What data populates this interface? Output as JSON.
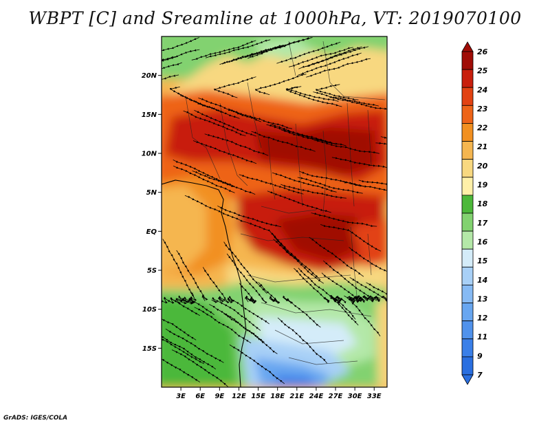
{
  "title": "WBPT [C] and Sreamline at 1000hPa, VT: 2019070100",
  "credit": "GrADS: IGES/COLA",
  "map": {
    "lon_range": [
      0,
      35
    ],
    "lat_range": [
      -20,
      25
    ],
    "lat_labels": [
      {
        "lat": 20,
        "label": "20N"
      },
      {
        "lat": 15,
        "label": "15N"
      },
      {
        "lat": 10,
        "label": "10N"
      },
      {
        "lat": 5,
        "label": "5N"
      },
      {
        "lat": 0,
        "label": "EQ"
      },
      {
        "lat": -5,
        "label": "5S"
      },
      {
        "lat": -10,
        "label": "10S"
      },
      {
        "lat": -15,
        "label": "15S"
      }
    ],
    "lon_labels": [
      {
        "lon": 3,
        "label": "3E"
      },
      {
        "lon": 6,
        "label": "6E"
      },
      {
        "lon": 9,
        "label": "9E"
      },
      {
        "lon": 12,
        "label": "12E"
      },
      {
        "lon": 15,
        "label": "15E"
      },
      {
        "lon": 18,
        "label": "18E"
      },
      {
        "lon": 21,
        "label": "21E"
      },
      {
        "lon": 24,
        "label": "24E"
      },
      {
        "lon": 27,
        "label": "27E"
      },
      {
        "lon": 30,
        "label": "30E"
      },
      {
        "lon": 33,
        "label": "33E"
      }
    ]
  },
  "colorbar": {
    "levels": [
      "7",
      "9",
      "11",
      "12",
      "13",
      "14",
      "15",
      "16",
      "17",
      "18",
      "19",
      "20",
      "21",
      "22",
      "23",
      "24",
      "25",
      "26"
    ],
    "colors": [
      "#2a6fe0",
      "#3a7fe8",
      "#5092ec",
      "#68a6f0",
      "#86baf4",
      "#a8d0f7",
      "#d4ecf9",
      "#b4e8a8",
      "#82d270",
      "#4cb83a",
      "#fff0a8",
      "#f8d880",
      "#f5b650",
      "#f29020",
      "#ee6418",
      "#e24212",
      "#c81e0c",
      "#a00c06"
    ]
  },
  "chart_data": {
    "type": "heatmap",
    "title": "WBPT [C] and Sreamline at 1000hPa, VT: 2019070100",
    "variable": "WBPT [C]",
    "overlay": "Streamline",
    "level": "1000hPa",
    "valid_time": "2019070100",
    "xlim": [
      0,
      35
    ],
    "ylim": [
      -20,
      25
    ],
    "regions": [
      {
        "area": "northern band 20N-25N",
        "value_range": [
          16,
          19
        ]
      },
      {
        "area": "Sahel 8N-17N",
        "value_range": [
          23,
          26
        ]
      },
      {
        "area": "Congo basin 5S-5N",
        "value_range": [
          23,
          25
        ]
      },
      {
        "area": "Gulf of Guinea coast",
        "value_range": [
          21,
          22
        ]
      },
      {
        "area": "southern Africa 10S-20S",
        "value_range": [
          12,
          17
        ]
      },
      {
        "area": "Atlantic off Angola",
        "value_range": [
          15,
          17
        ]
      }
    ]
  }
}
